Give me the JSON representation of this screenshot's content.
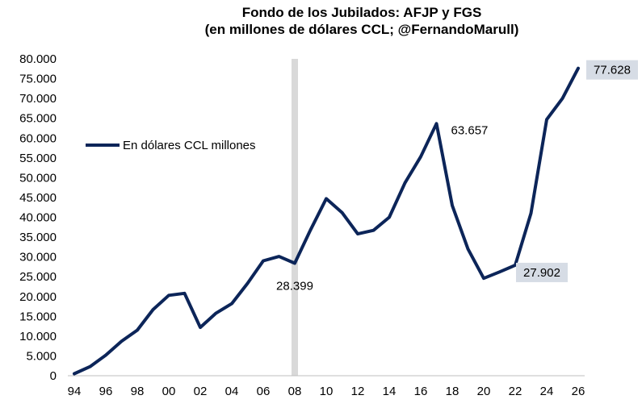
{
  "chart_data": {
    "type": "line",
    "title": "Fondo de los Jubilados: AFJP y FGS",
    "subtitle": "(en millones de dólares CCL;  @FernandoMarull)",
    "xlabel": "",
    "ylabel": "",
    "ylim": [
      0,
      80000
    ],
    "xlim": [
      1994,
      2026
    ],
    "grid": false,
    "legend_position": "left",
    "x_tick_labels": [
      "94",
      "96",
      "98",
      "00",
      "02",
      "04",
      "06",
      "08",
      "10",
      "12",
      "14",
      "16",
      "18",
      "20",
      "22",
      "24",
      "26"
    ],
    "x_tick_years": [
      1994,
      1996,
      1998,
      2000,
      2002,
      2004,
      2006,
      2008,
      2010,
      2012,
      2014,
      2016,
      2018,
      2020,
      2022,
      2024,
      2026
    ],
    "y_tick_labels": [
      "0",
      "5.000",
      "10.000",
      "15.000",
      "20.000",
      "25.000",
      "30.000",
      "35.000",
      "40.000",
      "45.000",
      "50.000",
      "55.000",
      "60.000",
      "65.000",
      "70.000",
      "75.000",
      "80.000"
    ],
    "y_tick_values": [
      0,
      5000,
      10000,
      15000,
      20000,
      25000,
      30000,
      35000,
      40000,
      45000,
      50000,
      55000,
      60000,
      65000,
      70000,
      75000,
      80000
    ],
    "reference_band_x": 2008,
    "series": [
      {
        "name": "En dólares CCL millones",
        "color": "#0c2559",
        "x": [
          1994,
          1995,
          1996,
          1997,
          1998,
          1999,
          2000,
          2001,
          2002,
          2003,
          2004,
          2005,
          2006,
          2007,
          2008,
          2009,
          2010,
          2011,
          2012,
          2013,
          2014,
          2015,
          2016,
          2017,
          2018,
          2019,
          2020,
          2021,
          2022,
          2023,
          2024,
          2025,
          2026
        ],
        "values": [
          500,
          2300,
          5200,
          8700,
          11500,
          16700,
          20300,
          20800,
          12200,
          15800,
          18200,
          23300,
          29000,
          30100,
          28399,
          36800,
          44700,
          41200,
          35800,
          36700,
          40000,
          48700,
          55300,
          63657,
          43000,
          32000,
          24600,
          26200,
          27902,
          41000,
          64700,
          70000,
          77628
        ]
      }
    ],
    "annotations": [
      {
        "label": "28.399",
        "x": 2008,
        "y": 28399,
        "boxed": false
      },
      {
        "label": "63.657",
        "x": 2017,
        "y": 63657,
        "boxed": false
      },
      {
        "label": "27.902",
        "x": 2022,
        "y": 27902,
        "boxed": true
      },
      {
        "label": "77.628",
        "x": 2026,
        "y": 77628,
        "boxed": true
      }
    ],
    "annotation_box_color": "#d6dce5"
  }
}
